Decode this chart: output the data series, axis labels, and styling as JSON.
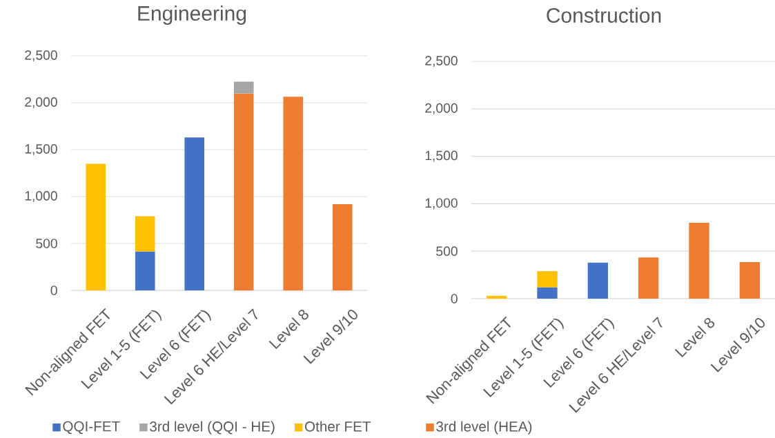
{
  "chart_data": [
    {
      "type": "bar",
      "title": "Engineering",
      "stacked": true,
      "categories": [
        "Non-aligned FET",
        "Level 1-5 (FET)",
        "Level 6 (FET)",
        "Level 6 HE/Level 7",
        "Level 8",
        "Level 9/10"
      ],
      "series": [
        {
          "name": "QQI-FET",
          "color": "#4472c4",
          "values": [
            null,
            415,
            1630,
            null,
            null,
            null
          ]
        },
        {
          "color": "#ed7d31",
          "values": [
            null,
            null,
            null,
            2100,
            2065,
            920
          ]
        },
        {
          "name": "3rd level (QQI - HE)",
          "color": "#a5a5a5",
          "values": [
            null,
            null,
            null,
            125,
            null,
            null
          ]
        },
        {
          "name": "Other FET",
          "color": "#ffc000",
          "values": [
            1350,
            375,
            null,
            null,
            null,
            null
          ]
        }
      ],
      "ylim": [
        0,
        2500
      ],
      "yticks": [
        0,
        500,
        {
          "value": 1000,
          "label": "1,000"
        },
        {
          "value": 1500,
          "label": "1,500"
        },
        {
          "value": 2000,
          "label": "2,000"
        },
        {
          "value": 2500,
          "label": "2,500"
        }
      ],
      "grid": "y",
      "legend": "bottom"
    },
    {
      "type": "bar",
      "title": "Construction",
      "stacked": true,
      "categories": [
        "Non-aligned FET",
        "Level 1-5 (FET)",
        "Level 6 (FET)",
        "Level 6 HE/Level 7",
        "Level 8",
        "Level 9/10"
      ],
      "series": [
        {
          "color": "#4472c4",
          "values": [
            null,
            120,
            380,
            null,
            null,
            null
          ]
        },
        {
          "name": "3rd level (HEA)",
          "color": "#ed7d31",
          "values": [
            null,
            null,
            null,
            435,
            800,
            385
          ]
        },
        {
          "color": "#ffc000",
          "values": [
            30,
            170,
            null,
            null,
            null,
            null
          ]
        }
      ],
      "ylim": [
        0,
        2500
      ],
      "yticks": [
        0,
        500,
        {
          "value": 1000,
          "label": "1,000"
        },
        {
          "value": 1500,
          "label": "1,500"
        },
        {
          "value": 2000,
          "label": "2,000"
        },
        {
          "value": 2500,
          "label": "2,500"
        }
      ],
      "grid": "y",
      "legend": "bottom"
    }
  ]
}
